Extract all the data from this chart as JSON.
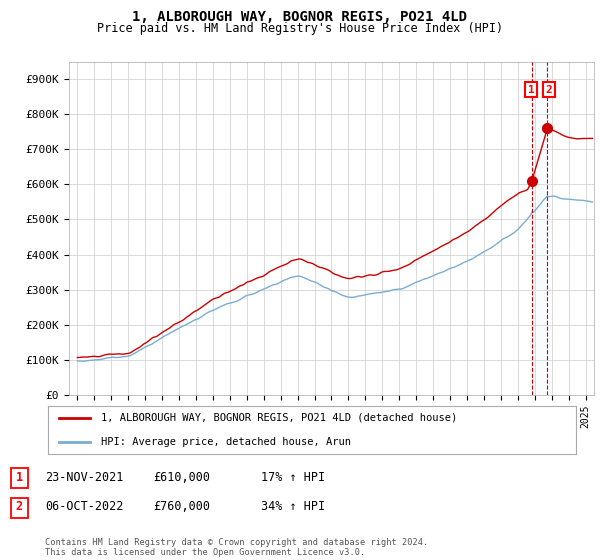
{
  "title": "1, ALBOROUGH WAY, BOGNOR REGIS, PO21 4LD",
  "subtitle": "Price paid vs. HM Land Registry's House Price Index (HPI)",
  "ylim": [
    0,
    950000
  ],
  "yticks": [
    0,
    100000,
    200000,
    300000,
    400000,
    500000,
    600000,
    700000,
    800000,
    900000
  ],
  "ytick_labels": [
    "£0",
    "£100K",
    "£200K",
    "£300K",
    "£400K",
    "£500K",
    "£600K",
    "£700K",
    "£800K",
    "£900K"
  ],
  "line1_color": "#cc0000",
  "line2_color": "#7aadd4",
  "shade_color": "#ddeeff",
  "annotation1": {
    "label": "1",
    "year": 2021.9,
    "value": 610000
  },
  "annotation2": {
    "label": "2",
    "year": 2022.75,
    "value": 760000
  },
  "legend1": "1, ALBOROUGH WAY, BOGNOR REGIS, PO21 4LD (detached house)",
  "legend2": "HPI: Average price, detached house, Arun",
  "footer": "Contains HM Land Registry data © Crown copyright and database right 2024.\nThis data is licensed under the Open Government Licence v3.0.",
  "table_rows": [
    {
      "num": "1",
      "date": "23-NOV-2021",
      "price": "£610,000",
      "hpi": "17% ↑ HPI"
    },
    {
      "num": "2",
      "date": "06-OCT-2022",
      "price": "£760,000",
      "hpi": "34% ↑ HPI"
    }
  ],
  "background_color": "#ffffff",
  "grid_color": "#cccccc",
  "vline_color": "#cc0000",
  "xlim_left": 1994.5,
  "xlim_right": 2025.5,
  "xstart": 1995,
  "xend": 2025
}
